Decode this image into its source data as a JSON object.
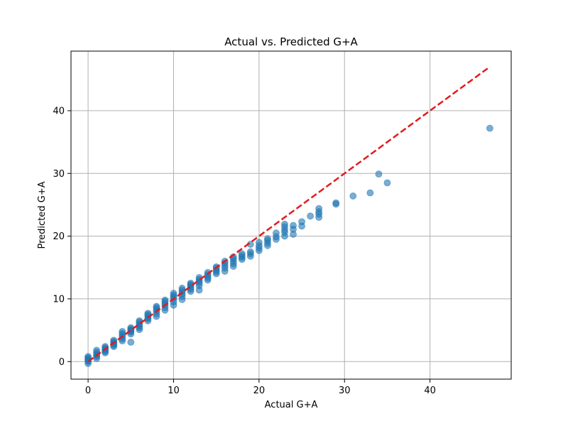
{
  "chart_data": {
    "type": "scatter",
    "title": "Actual vs. Predicted G+A",
    "xlabel": "Actual G+A",
    "ylabel": "Predicted G+A",
    "xlim": [
      -2,
      49.5
    ],
    "ylim": [
      -2.8,
      49.5
    ],
    "xticks": [
      0,
      10,
      20,
      30,
      40
    ],
    "yticks": [
      0,
      10,
      20,
      30,
      40
    ],
    "grid": true,
    "legend": "none",
    "colors": {
      "points": "#1f77b4",
      "reference_line": "#e31a1c",
      "grid": "#b0b0b0"
    },
    "reference_line": {
      "x": [
        0,
        47
      ],
      "y": [
        0,
        47
      ],
      "style": "dashed"
    },
    "points": {
      "x": [
        0,
        0,
        0,
        0,
        0,
        0,
        1,
        1,
        1,
        1,
        1,
        1,
        2,
        2,
        2,
        2,
        2,
        2,
        3,
        3,
        3,
        3,
        3,
        3,
        4,
        4,
        4,
        4,
        4,
        4,
        5,
        5,
        5,
        5,
        5,
        5,
        5,
        6,
        6,
        6,
        6,
        6,
        6,
        7,
        7,
        7,
        7,
        7,
        7,
        8,
        8,
        8,
        8,
        8,
        8,
        9,
        9,
        9,
        9,
        9,
        9,
        10,
        10,
        10,
        10,
        10,
        10,
        11,
        11,
        11,
        11,
        11,
        11,
        12,
        12,
        12,
        12,
        12,
        12,
        13,
        13,
        13,
        13,
        13,
        13,
        14,
        14,
        14,
        14,
        14,
        15,
        15,
        15,
        15,
        15,
        16,
        16,
        16,
        16,
        16,
        17,
        17,
        17,
        17,
        17,
        18,
        18,
        18,
        18,
        19,
        19,
        19,
        19,
        20,
        20,
        20,
        20,
        21,
        21,
        21,
        21,
        22,
        22,
        22,
        23,
        23,
        23,
        23,
        23,
        24,
        24,
        24,
        25,
        25,
        26,
        27,
        27,
        27,
        27,
        29,
        29,
        31,
        33,
        34,
        35,
        47
      ],
      "y": [
        -0.3,
        0.0,
        0.2,
        0.4,
        0.6,
        0.8,
        0.5,
        0.8,
        1.0,
        1.2,
        1.5,
        1.8,
        1.4,
        1.6,
        1.8,
        2.0,
        2.2,
        2.4,
        2.4,
        2.6,
        2.8,
        3.0,
        3.2,
        3.4,
        3.3,
        3.6,
        3.9,
        4.2,
        4.5,
        4.8,
        3.1,
        4.4,
        4.7,
        5.0,
        5.2,
        5.4,
        4.9,
        5.1,
        5.4,
        5.7,
        6.0,
        6.3,
        6.5,
        6.5,
        6.8,
        7.0,
        7.3,
        7.5,
        7.7,
        7.2,
        7.6,
        8.0,
        8.3,
        8.6,
        8.8,
        8.2,
        8.6,
        9.0,
        9.3,
        9.6,
        9.8,
        9.0,
        9.5,
        10.0,
        10.3,
        10.6,
        10.9,
        9.9,
        10.4,
        10.8,
        11.1,
        11.4,
        11.7,
        11.2,
        11.5,
        11.8,
        12.1,
        12.3,
        12.5,
        11.4,
        12.1,
        12.5,
        12.8,
        13.1,
        13.4,
        13.0,
        13.3,
        13.6,
        13.9,
        14.2,
        14.0,
        14.3,
        14.6,
        14.9,
        15.1,
        14.4,
        14.9,
        15.3,
        15.7,
        16.0,
        15.2,
        15.6,
        16.0,
        16.4,
        16.7,
        16.3,
        16.6,
        16.9,
        17.2,
        16.8,
        17.2,
        17.5,
        18.7,
        17.7,
        18.1,
        18.5,
        19.0,
        18.5,
        18.9,
        19.3,
        19.6,
        19.5,
        19.9,
        20.5,
        20.0,
        20.6,
        21.0,
        21.5,
        21.9,
        20.3,
        21.1,
        21.7,
        21.6,
        22.3,
        23.2,
        23.0,
        23.5,
        23.9,
        24.4,
        25.1,
        25.3,
        26.4,
        26.9,
        29.9,
        28.5,
        37.2
      ]
    }
  }
}
